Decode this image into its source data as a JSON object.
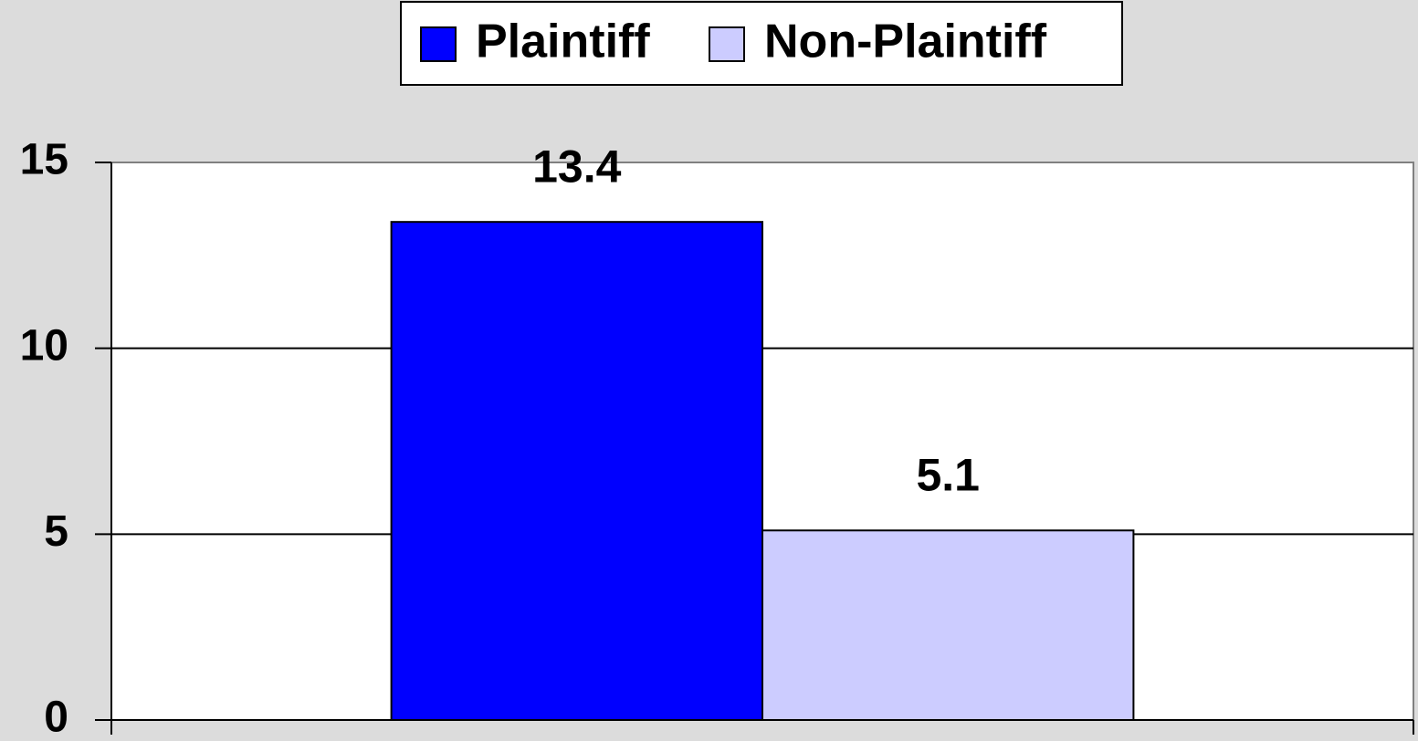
{
  "chart_data": {
    "type": "bar",
    "categories": [
      null
    ],
    "series": [
      {
        "name": "Plaintiff",
        "color": "#0000ff",
        "values": [
          13.4
        ]
      },
      {
        "name": "Non-Plaintiff",
        "color": "#ccccff",
        "values": [
          5.1
        ]
      }
    ],
    "ylim": [
      0,
      15
    ],
    "yticks": [
      0,
      5,
      10,
      15
    ],
    "grid": true,
    "legend": "top"
  }
}
